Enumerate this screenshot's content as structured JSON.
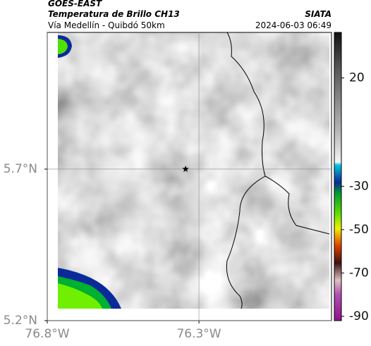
{
  "header": {
    "satellite": "GOES-EAST",
    "product": "Temperatura de Brillo CH13",
    "region": "Vía Medellín - Quibdó 50km",
    "source": "SIATA",
    "datetime": "2024-06-03 06:49"
  },
  "map": {
    "type": "map",
    "xlim": [
      -76.8,
      -75.863
    ],
    "ylim": [
      5.2,
      6.151
    ],
    "xticks": [
      {
        "value": -76.8,
        "label": "76.8°W"
      },
      {
        "value": -76.3,
        "label": "76.3°W"
      }
    ],
    "yticks": [
      {
        "value": 5.2,
        "label": "5.2°N"
      },
      {
        "value": 5.7,
        "label": "5.7°N"
      }
    ],
    "grid": true,
    "station": {
      "lon": -76.344,
      "lat": 5.7
    }
  },
  "colorbar": {
    "lim": [
      -92,
      41
    ],
    "ticks": [
      20,
      -30,
      -50,
      -70,
      -90
    ]
  }
}
